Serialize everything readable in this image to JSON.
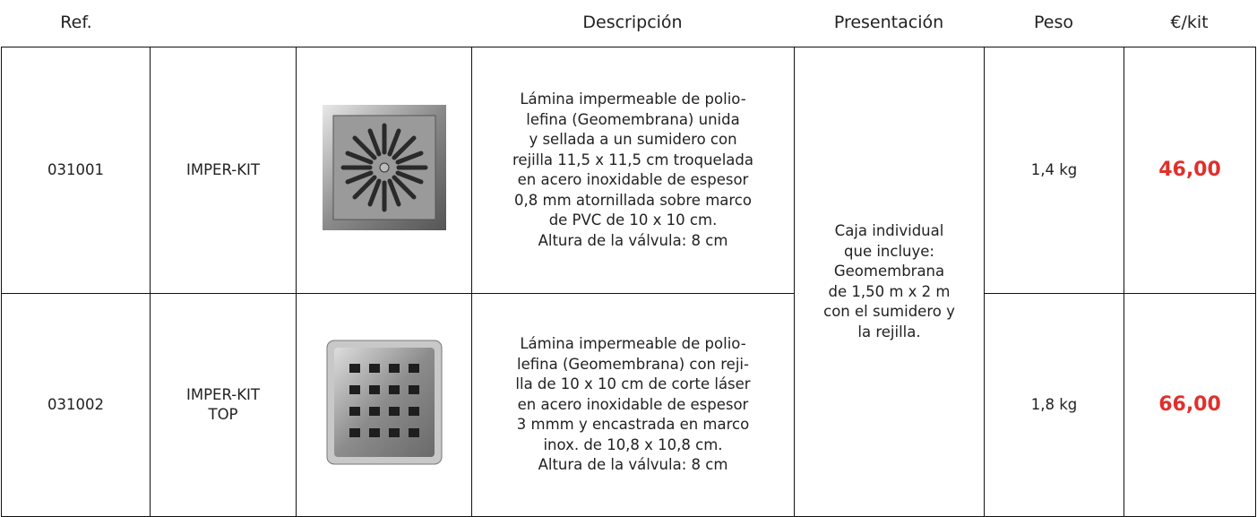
{
  "header": {
    "ref": "Ref.",
    "description": "Descripción",
    "presentation": "Presentación",
    "weight": "Peso",
    "price": "€/kit"
  },
  "rows": [
    {
      "ref": "031001",
      "name": [
        "IMPER-KIT"
      ],
      "description": [
        "Lámina impermeable de polio-",
        "lefina (Geomembrana) unida",
        "y sellada a un sumidero con",
        "rejilla 11,5 x 11,5 cm troquelada",
        "en acero inoxidable de espesor",
        "0,8 mm atornillada sobre marco",
        "de PVC de 10 x 10 cm.",
        "Altura de la válvula: 8 cm"
      ],
      "weight": "1,4 kg",
      "price": "46,00"
    },
    {
      "ref": "031002",
      "name": [
        "IMPER-KIT",
        "TOP"
      ],
      "description": [
        "Lámina impermeable de polio-",
        "lefina (Geomembrana) con reji-",
        "lla de 10 x 10 cm de corte láser",
        "en acero inoxidable de espesor",
        "3 mmm y encastrada en marco",
        "inox. de 10,8 x 10,8 cm.",
        "Altura de la válvula: 8 cm"
      ],
      "weight": "1,8 kg",
      "price": "66,00"
    }
  ],
  "presentation": [
    "Caja individual",
    "que incluye:",
    "Geomembrana",
    "de 1,50 m x 2 m",
    "con el sumidero y",
    "la rejilla."
  ]
}
